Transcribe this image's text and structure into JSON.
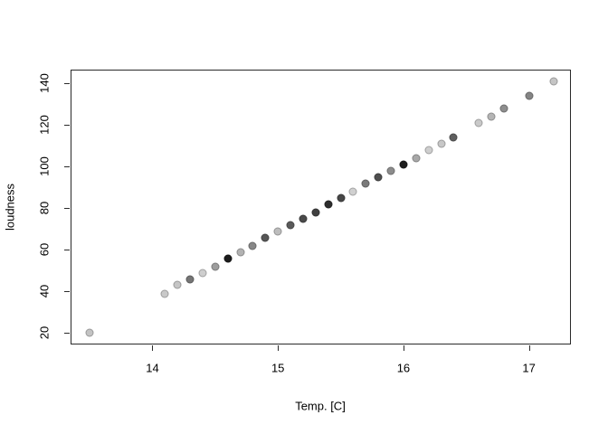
{
  "figure": {
    "background": "#ffffff",
    "axis_color": "#2a2a2a",
    "text_color": "#000000"
  },
  "chart_data": {
    "type": "scatter",
    "title": "",
    "xlabel": "Temp. [C]",
    "ylabel": "loudness",
    "x_ticks": [
      "14",
      "15",
      "16",
      "17"
    ],
    "x_tick_values": [
      14,
      15,
      16,
      17
    ],
    "y_ticks": [
      "20",
      "40",
      "60",
      "80",
      "100",
      "120",
      "140"
    ],
    "y_tick_values": [
      20,
      40,
      60,
      80,
      100,
      120,
      140
    ],
    "xlim": [
      13.348,
      17.334
    ],
    "ylim": [
      14.5,
      146.7
    ],
    "grid": false,
    "legend_position": "none",
    "marker": "filled-circle",
    "points": [
      {
        "x": 13.5,
        "y": 20,
        "color": "#c3c3c3"
      },
      {
        "x": 14.1,
        "y": 39,
        "color": "#c9c9c9"
      },
      {
        "x": 14.2,
        "y": 43,
        "color": "#c5c5c5"
      },
      {
        "x": 14.3,
        "y": 46,
        "color": "#757575"
      },
      {
        "x": 14.4,
        "y": 49,
        "color": "#cecece"
      },
      {
        "x": 14.5,
        "y": 52,
        "color": "#9d9d9d"
      },
      {
        "x": 14.6,
        "y": 56,
        "color": "#1c1c1c"
      },
      {
        "x": 14.7,
        "y": 59,
        "color": "#b2b2b2"
      },
      {
        "x": 14.8,
        "y": 62,
        "color": "#878787"
      },
      {
        "x": 14.9,
        "y": 66,
        "color": "#575757"
      },
      {
        "x": 15.0,
        "y": 69,
        "color": "#bdbdbd"
      },
      {
        "x": 15.1,
        "y": 72,
        "color": "#5a5a5a"
      },
      {
        "x": 15.2,
        "y": 75,
        "color": "#4a4a4a"
      },
      {
        "x": 15.3,
        "y": 78,
        "color": "#404040"
      },
      {
        "x": 15.4,
        "y": 82,
        "color": "#2d2d2d"
      },
      {
        "x": 15.5,
        "y": 85,
        "color": "#474747"
      },
      {
        "x": 15.6,
        "y": 88,
        "color": "#d0d0d0"
      },
      {
        "x": 15.7,
        "y": 92,
        "color": "#7a7a7a"
      },
      {
        "x": 15.8,
        "y": 95,
        "color": "#4f4f4f"
      },
      {
        "x": 15.9,
        "y": 98,
        "color": "#8c8c8c"
      },
      {
        "x": 16.0,
        "y": 101,
        "color": "#1e1e1e"
      },
      {
        "x": 16.1,
        "y": 104,
        "color": "#a8a8a8"
      },
      {
        "x": 16.2,
        "y": 108,
        "color": "#cecece"
      },
      {
        "x": 16.3,
        "y": 111,
        "color": "#c7c7c7"
      },
      {
        "x": 16.4,
        "y": 114,
        "color": "#5f5f5f"
      },
      {
        "x": 16.6,
        "y": 121,
        "color": "#c9c9c9"
      },
      {
        "x": 16.7,
        "y": 124,
        "color": "#b5b5b5"
      },
      {
        "x": 16.8,
        "y": 128,
        "color": "#8e8e8e"
      },
      {
        "x": 17.0,
        "y": 134,
        "color": "#858585"
      },
      {
        "x": 17.2,
        "y": 141,
        "color": "#c5c5c5"
      }
    ]
  }
}
